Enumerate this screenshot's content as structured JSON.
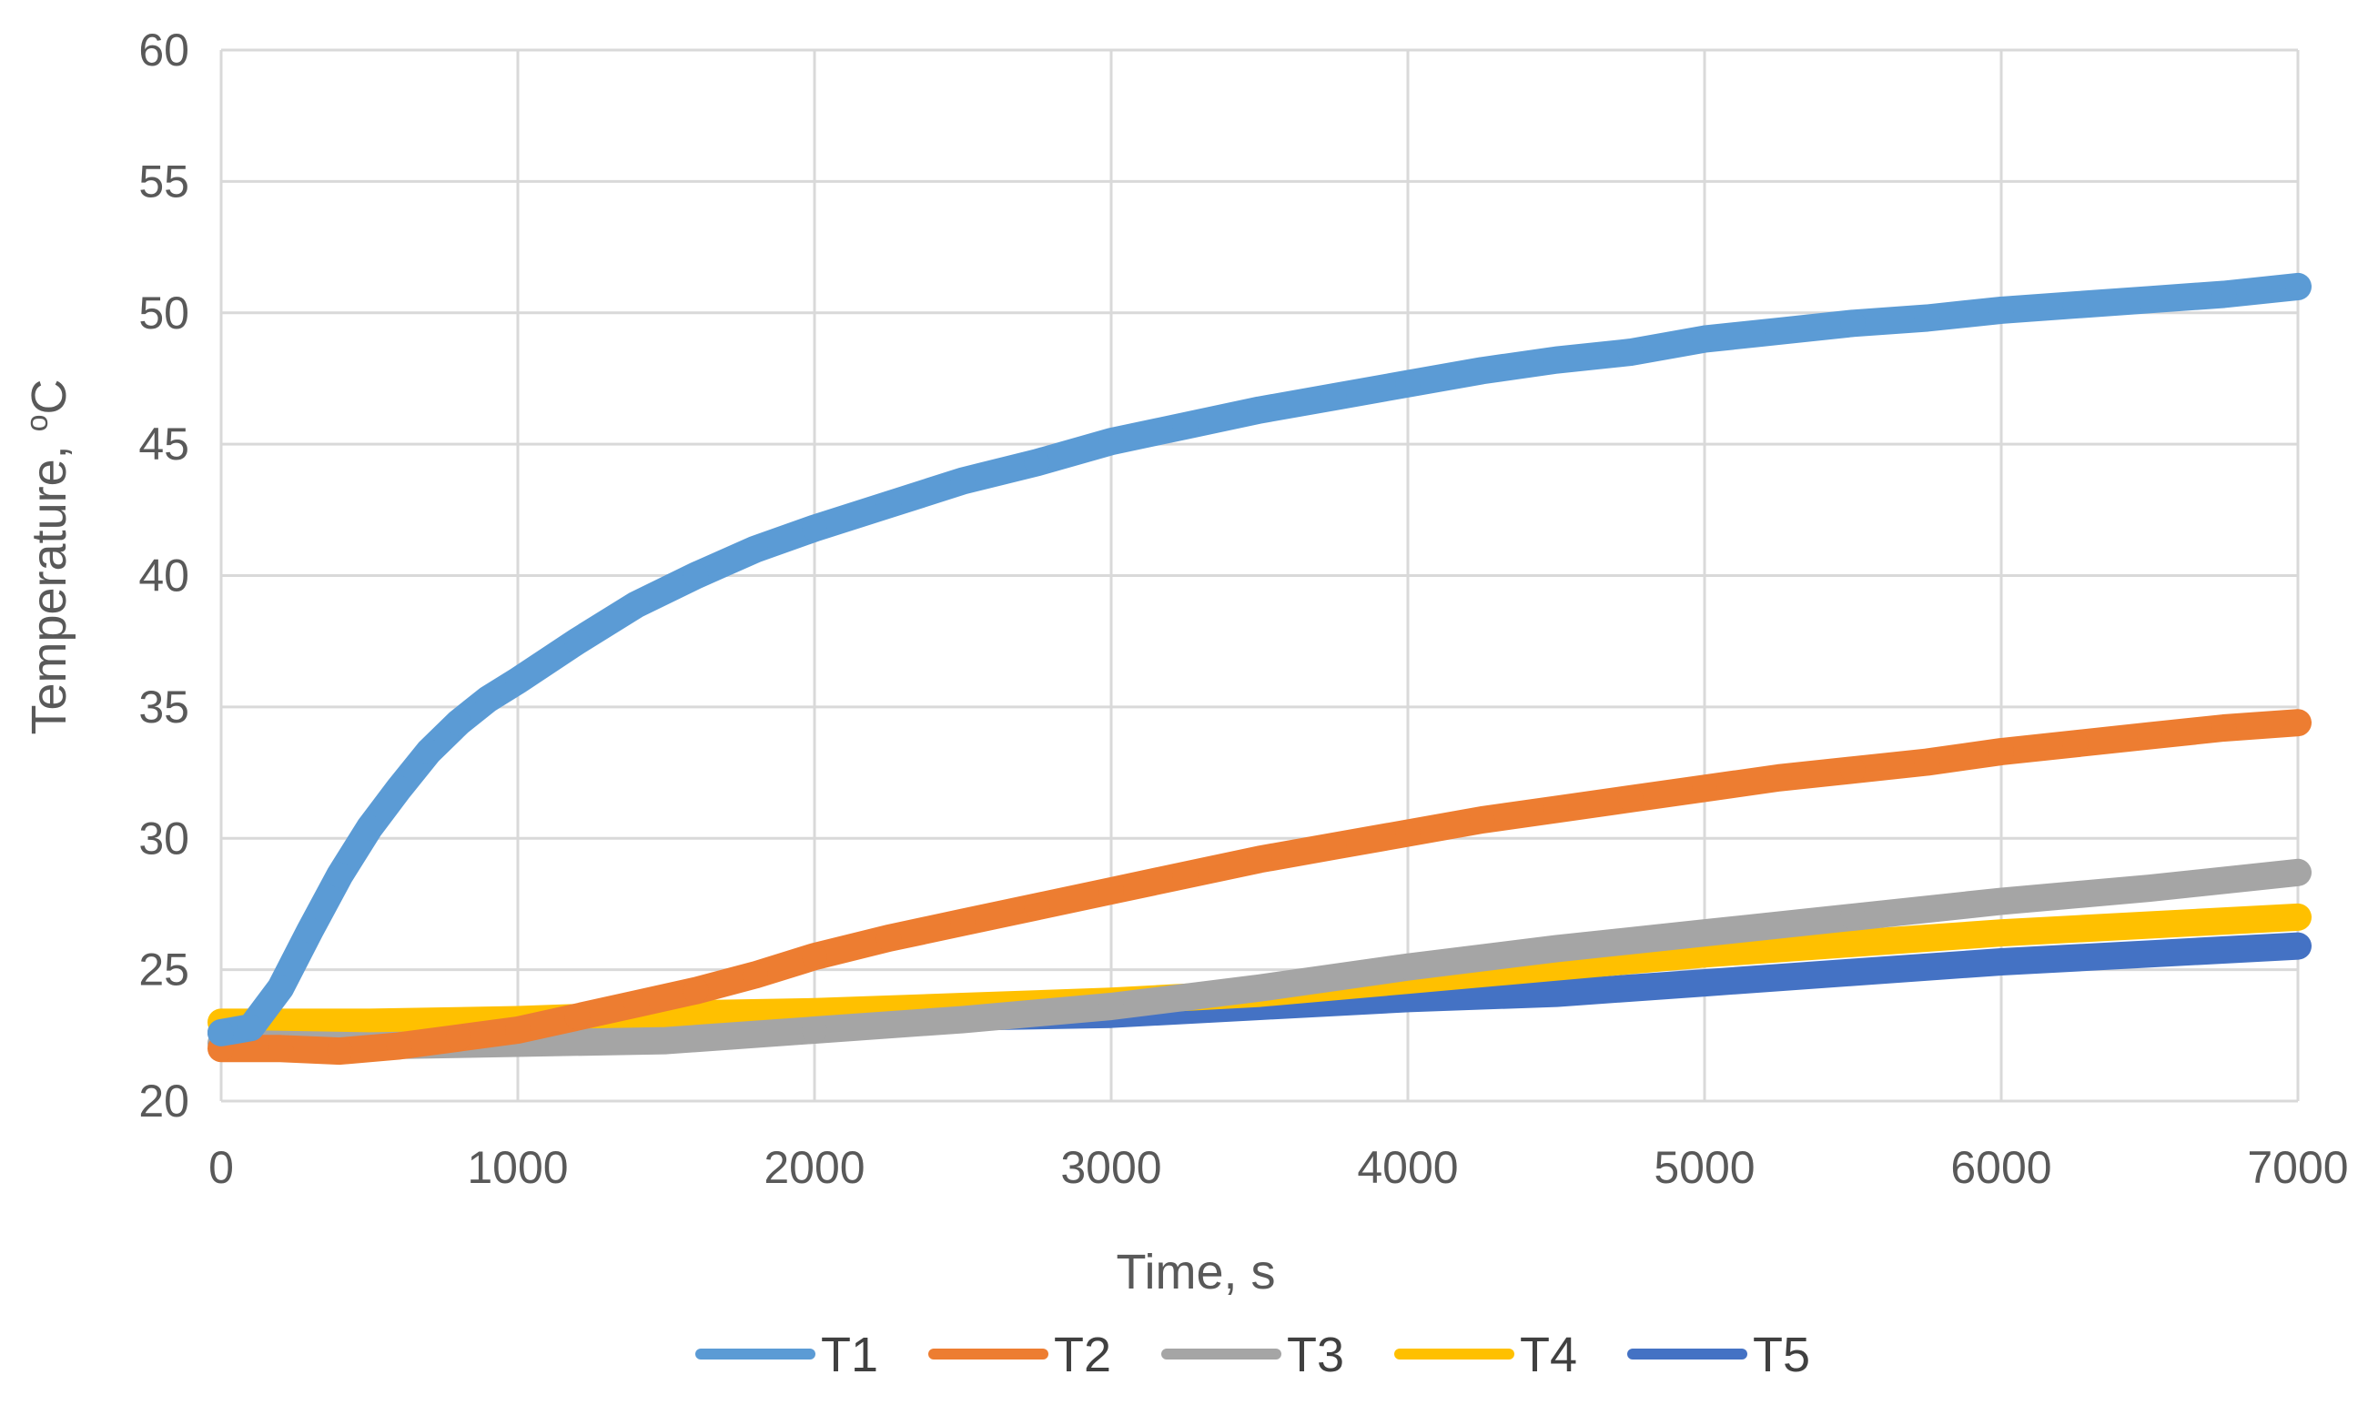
{
  "chart_data": {
    "type": "line",
    "title": "",
    "xlabel": "Time, s",
    "ylabel": "Temperature, ",
    "ylabel_sup": "o",
    "ylabel_unit": "C",
    "xlim": [
      0,
      7000
    ],
    "ylim": [
      20,
      60
    ],
    "x_ticks": [
      0,
      1000,
      2000,
      3000,
      4000,
      5000,
      6000,
      7000
    ],
    "y_ticks": [
      20,
      25,
      30,
      35,
      40,
      45,
      50,
      55,
      60
    ],
    "grid": true,
    "legend_position": "bottom",
    "series": [
      {
        "name": "T1",
        "color": "#5b9bd5",
        "x": [
          0,
          100,
          200,
          300,
          400,
          500,
          600,
          700,
          800,
          900,
          1000,
          1200,
          1400,
          1600,
          1800,
          2000,
          2250,
          2500,
          2750,
          3000,
          3250,
          3500,
          3750,
          4000,
          4250,
          4500,
          4750,
          5000,
          5250,
          5500,
          5750,
          6000,
          6250,
          6500,
          6750,
          7000
        ],
        "y": [
          22.6,
          22.8,
          24.3,
          26.5,
          28.6,
          30.4,
          31.9,
          33.3,
          34.4,
          35.3,
          36.0,
          37.5,
          38.9,
          40.0,
          41.0,
          41.8,
          42.7,
          43.6,
          44.3,
          45.1,
          45.7,
          46.3,
          46.8,
          47.3,
          47.8,
          48.2,
          48.5,
          49.0,
          49.3,
          49.6,
          49.8,
          50.1,
          50.3,
          50.5,
          50.7,
          51.0
        ]
      },
      {
        "name": "T2",
        "color": "#ed7d31",
        "x": [
          0,
          200,
          400,
          600,
          800,
          1000,
          1200,
          1400,
          1600,
          1800,
          2000,
          2250,
          2500,
          2750,
          3000,
          3250,
          3500,
          3750,
          4000,
          4250,
          4500,
          4750,
          5000,
          5250,
          5500,
          5750,
          6000,
          6250,
          6500,
          6750,
          7000
        ],
        "y": [
          22.0,
          22.0,
          21.9,
          22.1,
          22.4,
          22.7,
          23.2,
          23.7,
          24.2,
          24.8,
          25.5,
          26.2,
          26.8,
          27.4,
          28.0,
          28.6,
          29.2,
          29.7,
          30.2,
          30.7,
          31.1,
          31.5,
          31.9,
          32.3,
          32.6,
          32.9,
          33.3,
          33.6,
          33.9,
          34.2,
          34.4
        ]
      },
      {
        "name": "T3",
        "color": "#a5a5a5",
        "x": [
          0,
          500,
          1000,
          1500,
          2000,
          2500,
          3000,
          3500,
          4000,
          4500,
          5000,
          5500,
          6000,
          6500,
          7000
        ],
        "y": [
          22.2,
          22.1,
          22.2,
          22.3,
          22.7,
          23.1,
          23.6,
          24.3,
          25.1,
          25.8,
          26.4,
          27.0,
          27.6,
          28.1,
          28.7
        ]
      },
      {
        "name": "T4",
        "color": "#ffc000",
        "x": [
          0,
          500,
          1000,
          1500,
          2000,
          2500,
          3000,
          3500,
          4000,
          4500,
          5000,
          5500,
          6000,
          6500,
          7000
        ],
        "y": [
          23.0,
          23.0,
          23.1,
          23.3,
          23.4,
          23.6,
          23.8,
          24.1,
          24.6,
          25.1,
          25.6,
          26.0,
          26.4,
          26.7,
          27.0
        ]
      },
      {
        "name": "T5",
        "color": "#4472c4",
        "x": [
          0,
          500,
          1000,
          1500,
          2000,
          2500,
          3000,
          3500,
          4000,
          4500,
          5000,
          5500,
          6000,
          6500,
          7000
        ],
        "y": [
          22.6,
          22.6,
          22.6,
          22.8,
          23.0,
          23.2,
          23.3,
          23.6,
          23.9,
          24.1,
          24.5,
          24.9,
          25.3,
          25.6,
          25.9
        ]
      }
    ]
  }
}
